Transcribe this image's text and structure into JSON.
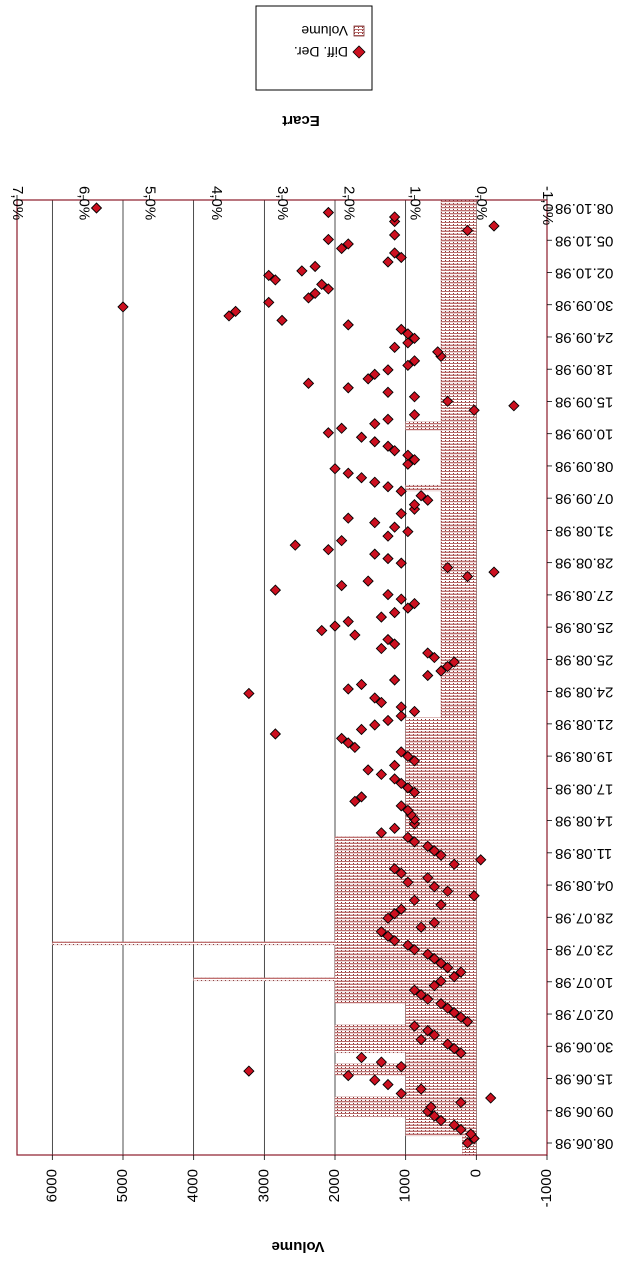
{
  "chart_data": {
    "type": "scatter",
    "orientation": "rotated-90-clockwise",
    "secondary_axis": {
      "label": "Ecart",
      "ticks": [
        "-1,0%",
        "0,0%",
        "1,0%",
        "2,0%",
        "3,0%",
        "4,0%",
        "5,0%",
        "6,0%",
        "7,0%"
      ],
      "range": [
        -1.0,
        7.0
      ],
      "unit": "%"
    },
    "primary_axis": {
      "label": "Volume",
      "ticks": [
        "-1000",
        "0",
        "1000",
        "2000",
        "3000",
        "4000",
        "5000",
        "6000"
      ],
      "range": [
        -1000,
        6500
      ]
    },
    "category_axis": {
      "tick_labels": [
        "08.06.98",
        "09.06.98",
        "15.06.98",
        "30.06.98",
        "02.07.98",
        "10.07.98",
        "23.07.98",
        "28.07.98",
        "04.08.98",
        "11.08.98",
        "14.08.98",
        "17.08.98",
        "19.08.98",
        "21.08.98",
        "24.08.98",
        "25.08.98",
        "25.08.98",
        "27.08.98",
        "28.08.98",
        "31.08.98",
        "07.09.98",
        "08.09.98",
        "10.09.98",
        "15.09.98",
        "18.09.98",
        "24.09.98",
        "30.09.98",
        "02.10.98",
        "05.10.98",
        "08.10.98"
      ]
    },
    "legend": {
      "placement": "top",
      "entries": [
        {
          "name": "Volume",
          "marker": "dotted-hatched-bar"
        },
        {
          "name": "Diff. Der.",
          "marker": "red-diamond"
        }
      ]
    },
    "grid": "major lines on volume axis",
    "colors": {
      "bar_fill": "#ffffff",
      "bar_hatch": "#c07070",
      "marker_fill": "#cc1020",
      "marker_stroke": "#000000",
      "plot_border": "#8b1a2a",
      "grid": "#000000"
    },
    "series": [
      {
        "name": "Volume",
        "kind": "bar",
        "values": [
          200,
          200,
          200,
          200,
          200,
          200,
          200,
          1000,
          1000,
          1000,
          1000,
          1000,
          1000,
          1000,
          2000,
          2000,
          2000,
          2000,
          2000,
          2000,
          2000,
          1000,
          1000,
          1000,
          1000,
          1000,
          1000,
          1000,
          1000,
          2000,
          2000,
          2000,
          2000,
          1000,
          1000,
          1000,
          1000,
          2000,
          2000,
          2000,
          2000,
          2000,
          2000,
          2000,
          2000,
          2000,
          2000,
          1000,
          1000,
          1000,
          1000,
          1000,
          1000,
          1000,
          1000,
          2000,
          2000,
          2000,
          2000,
          2000,
          2000,
          2000,
          2000,
          4000,
          2000,
          2000,
          2000,
          2000,
          2000,
          2000,
          2000,
          2000,
          2000,
          2000,
          2000,
          2000,
          6000,
          2000,
          2000,
          2000,
          2000,
          2000,
          2000,
          2000,
          2000,
          2000,
          2000,
          2000,
          2000,
          2000,
          2000,
          2000,
          2000,
          2000,
          2000,
          2000,
          2000,
          2000,
          2000,
          2000,
          2000,
          2000,
          2000,
          2000,
          2000,
          2000,
          2000,
          2000,
          2000,
          2000,
          2000,
          2000,
          2000,
          2000,
          2000,
          1000,
          1000,
          1000,
          1000,
          1000,
          1000,
          1000,
          1000,
          1000,
          1000,
          1000,
          1000,
          1000,
          1000,
          1000,
          1000,
          1000,
          1000,
          1000,
          1000,
          1000,
          1000,
          1000,
          1000,
          1000,
          1000,
          1000,
          1000,
          1000,
          1000,
          1000,
          1000,
          1000,
          1000,
          1000,
          1000,
          1000,
          1000,
          1000,
          1000,
          1000,
          1000,
          1000,
          500,
          500,
          500,
          500,
          500,
          500,
          500,
          500,
          500,
          500,
          500,
          500,
          500,
          500,
          500,
          500,
          500,
          500,
          500,
          500,
          500,
          500,
          500,
          500,
          500,
          500,
          500,
          500,
          500,
          500,
          500,
          500,
          500,
          500,
          500,
          500,
          500,
          500,
          500,
          500,
          500,
          500,
          500,
          500,
          500,
          500,
          500,
          500,
          500,
          500,
          500,
          500,
          500,
          500,
          500,
          500,
          500,
          500,
          500,
          500,
          500,
          500,
          500,
          500,
          500,
          500,
          500,
          500,
          500,
          500,
          500,
          500,
          500,
          500,
          500,
          500,
          500,
          500,
          500,
          500,
          500,
          500,
          1000,
          1000,
          500,
          500,
          500,
          500,
          500,
          500,
          500,
          500,
          500,
          500,
          500,
          500,
          500,
          500,
          500,
          500,
          500,
          500,
          500,
          500,
          1000,
          1000,
          1000,
          500,
          500,
          500,
          500,
          500,
          500,
          500,
          500,
          500,
          500,
          500,
          500,
          500,
          500,
          500,
          500,
          500,
          500,
          500,
          500,
          500,
          500,
          500,
          500,
          500,
          500,
          500,
          500,
          500,
          500,
          500,
          500,
          500,
          500,
          500,
          500,
          500,
          500,
          500,
          500,
          500,
          500,
          500,
          500,
          500,
          500,
          500,
          500,
          500,
          500,
          500,
          500,
          500,
          500,
          500,
          500,
          500,
          500,
          500,
          500,
          500,
          500,
          500,
          500,
          500,
          500,
          500,
          500,
          500,
          500,
          500,
          500,
          500,
          500,
          500,
          500,
          500,
          500,
          500,
          500
        ]
      },
      {
        "name": "Diff. Der.",
        "kind": "scatter",
        "values": [
          0.2,
          0.1,
          0.15,
          0.3,
          0.4,
          0.6,
          0.7,
          0.8,
          0.75,
          0.3,
          -0.15,
          1.2,
          0.9,
          1.4,
          1.6,
          2.0,
          3.5,
          1.2,
          1.5,
          1.8,
          0.3,
          0.4,
          0.5,
          0.9,
          0.7,
          0.8,
          1.0,
          0.2,
          0.3,
          0.4,
          0.5,
          0.6,
          0.8,
          0.9,
          1.0,
          0.7,
          0.6,
          0.4,
          0.3,
          0.5,
          0.6,
          0.7,
          0.8,
          1.0,
          1.1,
          1.3,
          1.4,
          1.5,
          0.9,
          0.7,
          1.4,
          1.3,
          1.2,
          0.6,
          1.0,
          0.1,
          0.5,
          0.7,
          1.1,
          0.8,
          1.2,
          1.3,
          0.4,
          0.0,
          0.6,
          0.7,
          0.8,
          1.0,
          1.1,
          1.5,
          1.3,
          1.0,
          1.0,
          1.05,
          1.1,
          1.2,
          1.9,
          1.8,
          1.0,
          1.1,
          1.2,
          1.3,
          1.5,
          1.7,
          1.3,
          1.0,
          1.1,
          1.2,
          1.9,
          2.0,
          2.1,
          3.1,
          1.8,
          1.6,
          1.4,
          1.2,
          1.0,
          1.2,
          1.5,
          1.6,
          3.5,
          2.0,
          1.8,
          1.3,
          0.8,
          0.6,
          0.5,
          0.4,
          0.7,
          0.8,
          1.5,
          1.3,
          1.4,
          1.9,
          2.4,
          2.2,
          2.0,
          1.5,
          1.3,
          1.1,
          1.0,
          1.2,
          1.4,
          3.1,
          2.1,
          1.7,
          0.2,
          -0.2,
          0.5,
          1.2,
          1.4,
          1.6,
          2.3,
          2.8,
          2.1,
          1.4,
          1.1,
          1.3,
          1.6,
          2.0,
          1.2,
          1.0,
          1.0,
          0.8,
          0.9,
          1.2,
          1.4,
          1.6,
          1.8,
          2.0,
          2.2,
          1.1,
          1.0,
          1.1,
          1.3,
          1.4,
          1.6,
          1.8,
          2.3,
          2.1,
          1.6,
          1.4,
          1.0,
          0.1,
          -0.5,
          0.5,
          1.0,
          1.4,
          2.0,
          2.6,
          1.7,
          1.6,
          1.4,
          1.1,
          1.0,
          0.6,
          0.65,
          1.3,
          1.1,
          1.0,
          1.1,
          1.2,
          2.0,
          3.0,
          3.8,
          3.7,
          5.4,
          3.2,
          2.6,
          2.5,
          2.3,
          2.4,
          3.1,
          3.2,
          2.7,
          2.5,
          1.4,
          1.2,
          1.3,
          2.1,
          2.0,
          2.3,
          1.3,
          0.2,
          -0.2,
          1.3,
          1.3,
          2.3,
          5.8
        ]
      }
    ]
  }
}
